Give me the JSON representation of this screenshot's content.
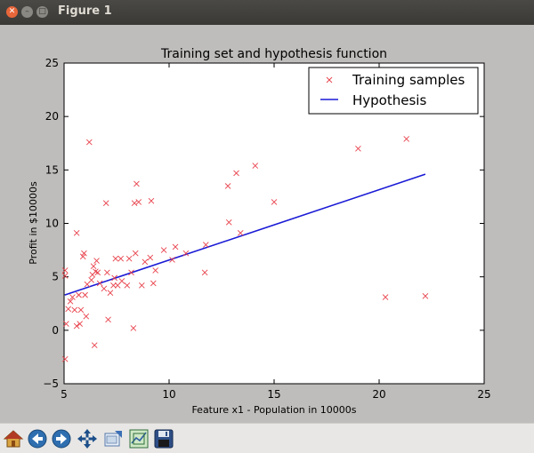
{
  "window": {
    "title": "Figure 1"
  },
  "toolbar": {
    "buttons": [
      {
        "name": "home-button",
        "icon": "home-icon"
      },
      {
        "name": "back-button",
        "icon": "arrow-left-icon"
      },
      {
        "name": "forward-button",
        "icon": "arrow-right-icon"
      },
      {
        "name": "pan-button",
        "icon": "move-icon"
      },
      {
        "name": "zoom-button",
        "icon": "zoom-rect-icon"
      },
      {
        "name": "configure-subplots-button",
        "icon": "subplots-icon"
      },
      {
        "name": "save-button",
        "icon": "floppy-icon"
      }
    ]
  },
  "chart_data": {
    "type": "scatter",
    "title": "Training set and hypothesis function",
    "xlabel": "Feature x1 - Population in 10000s",
    "ylabel": "Profit in $10000s",
    "xlim": [
      5,
      25
    ],
    "ylim": [
      -5,
      25
    ],
    "xticks": [
      "5",
      "10",
      "15",
      "20",
      "25"
    ],
    "yticks": [
      "−5",
      "0",
      "5",
      "10",
      "15",
      "20",
      "25"
    ],
    "legend": {
      "placement": "top-right",
      "entries": [
        "Training samples",
        "Hypothesis"
      ]
    },
    "colors": {
      "samples": "#e8414b",
      "hypothesis": "#1a1ad6"
    },
    "series": [
      {
        "name": "Training samples",
        "marker": "x",
        "points": [
          [
            5.05,
            5.6
          ],
          [
            5.05,
            5.1
          ],
          [
            5.1,
            0.6
          ],
          [
            5.05,
            -2.7
          ],
          [
            5.2,
            2.0
          ],
          [
            5.3,
            2.7
          ],
          [
            5.4,
            3.1
          ],
          [
            5.5,
            1.9
          ],
          [
            5.6,
            0.4
          ],
          [
            5.6,
            9.1
          ],
          [
            5.7,
            3.3
          ],
          [
            5.8,
            1.9
          ],
          [
            5.75,
            0.6
          ],
          [
            5.9,
            6.9
          ],
          [
            5.95,
            7.2
          ],
          [
            6.0,
            3.3
          ],
          [
            6.05,
            1.3
          ],
          [
            6.1,
            4.3
          ],
          [
            6.2,
            17.6
          ],
          [
            6.3,
            4.7
          ],
          [
            6.35,
            5.2
          ],
          [
            6.4,
            6.0
          ],
          [
            6.45,
            -1.4
          ],
          [
            6.5,
            5.5
          ],
          [
            6.55,
            6.5
          ],
          [
            6.6,
            5.4
          ],
          [
            6.7,
            4.4
          ],
          [
            6.9,
            3.9
          ],
          [
            7.0,
            11.9
          ],
          [
            7.05,
            5.4
          ],
          [
            7.1,
            1.0
          ],
          [
            7.2,
            3.5
          ],
          [
            7.35,
            4.2
          ],
          [
            7.4,
            4.9
          ],
          [
            7.45,
            6.7
          ],
          [
            7.55,
            4.2
          ],
          [
            7.7,
            6.7
          ],
          [
            7.75,
            4.6
          ],
          [
            8.0,
            4.2
          ],
          [
            8.1,
            6.7
          ],
          [
            8.2,
            5.4
          ],
          [
            8.3,
            0.2
          ],
          [
            8.35,
            11.9
          ],
          [
            8.4,
            7.2
          ],
          [
            8.45,
            13.7
          ],
          [
            8.55,
            12.0
          ],
          [
            8.7,
            4.2
          ],
          [
            8.85,
            6.4
          ],
          [
            9.1,
            6.8
          ],
          [
            9.15,
            12.1
          ],
          [
            9.25,
            4.4
          ],
          [
            9.35,
            5.6
          ],
          [
            9.75,
            7.5
          ],
          [
            10.15,
            6.6
          ],
          [
            10.3,
            7.8
          ],
          [
            10.8,
            7.2
          ],
          [
            11.7,
            5.4
          ],
          [
            11.75,
            8.0
          ],
          [
            12.8,
            13.5
          ],
          [
            12.85,
            10.1
          ],
          [
            13.2,
            14.7
          ],
          [
            13.4,
            9.1
          ],
          [
            14.1,
            15.4
          ],
          [
            15.0,
            12.0
          ],
          [
            19.0,
            17.0
          ],
          [
            21.3,
            17.9
          ],
          [
            22.2,
            3.2
          ],
          [
            20.3,
            3.1
          ]
        ]
      },
      {
        "name": "Hypothesis",
        "line": true,
        "points": [
          [
            5.03,
            3.3
          ],
          [
            22.2,
            14.6
          ]
        ]
      }
    ]
  }
}
